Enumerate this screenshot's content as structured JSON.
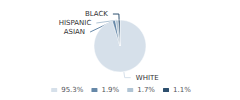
{
  "chart_data": {
    "type": "pie",
    "categories": [
      "WHITE",
      "ASIAN",
      "HISPANIC",
      "BLACK"
    ],
    "values": [
      95.3,
      1.9,
      1.7,
      1.1
    ],
    "value_labels": [
      "95.3%",
      "1.9%",
      "1.7%",
      "1.1%"
    ],
    "colors": [
      "#d6e0ea",
      "#6688a8",
      "#b0c4d4",
      "#2d4f6e"
    ],
    "legend": "bottom"
  }
}
